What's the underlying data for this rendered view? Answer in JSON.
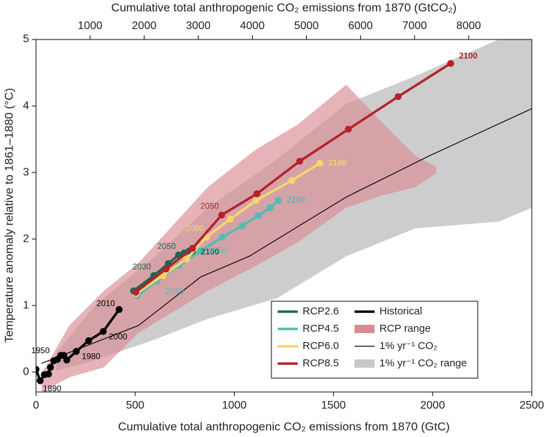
{
  "chart_data": {
    "type": "line",
    "x_label": "Cumulative total anthropogenic CO₂ emissions from 1870 (GtC)",
    "x2_label": "Cumulative total anthropogenic CO₂ emissions from 1870 (GtCO₂)",
    "y_label": "Temperature anomaly relative to 1861–1880 (°C)",
    "xlim": [
      0,
      2500
    ],
    "xticks": [
      0,
      500,
      1000,
      1500,
      2000,
      2500
    ],
    "ylim": [
      -0.3,
      5
    ],
    "yticks": [
      0,
      1,
      2,
      3,
      4,
      5
    ],
    "x2lim": [
      0,
      9167
    ],
    "x2ticks": [
      1000,
      2000,
      3000,
      4000,
      5000,
      6000,
      7000,
      8000
    ],
    "legend": "lower right",
    "bands": [
      {
        "name": "RCP range",
        "color": "#d98a92",
        "x": [
          28,
          168,
          342,
          517,
          866,
          1111,
          1320,
          1564,
          1739,
          1913,
          2018
        ],
        "upper": [
          -0.03,
          0.7,
          1.22,
          1.64,
          2.78,
          3.35,
          3.72,
          4.32,
          3.77,
          3.25,
          3.09
        ],
        "lower": [
          -0.3,
          -0.08,
          0.07,
          0.59,
          1.22,
          1.6,
          1.95,
          2.47,
          2.65,
          2.78,
          2.99
        ]
      },
      {
        "name": "1% yr⁻¹ CO₂ range",
        "color": "#c8c8c8",
        "x": [
          100,
          300,
          600,
          866,
          1215,
          1564,
          1913,
          2332,
          2500
        ],
        "upper": [
          0.28,
          1.01,
          1.74,
          2.47,
          3.2,
          4.03,
          4.45,
          5.0,
          5.3
        ],
        "lower": [
          0.02,
          0.18,
          0.49,
          0.8,
          1.11,
          1.74,
          2.16,
          2.26,
          2.47
        ]
      }
    ],
    "series": [
      {
        "name": "RCP2.6",
        "color": "#1b6554",
        "markers": true,
        "x": [
          492,
          594,
          667,
          719,
          747,
          772,
          789
        ],
        "values": [
          1.22,
          1.45,
          1.63,
          1.76,
          1.79,
          1.82,
          1.8
        ],
        "point_labels": [
          null,
          "2030",
          null,
          "2050",
          null,
          null,
          "2100"
        ]
      },
      {
        "name": "RCP4.5",
        "color": "#52bcb3",
        "markers": true,
        "x": [
          510,
          610,
          720,
          830,
          940,
          1040,
          1120,
          1180,
          1222
        ],
        "values": [
          1.15,
          1.37,
          1.6,
          1.82,
          2.03,
          2.2,
          2.35,
          2.47,
          2.58
        ],
        "point_labels": [
          null,
          "2030",
          null,
          "2050",
          null,
          null,
          null,
          null,
          "2100"
        ]
      },
      {
        "name": "RCP6.0",
        "color": "#f8d46c",
        "markers": true,
        "x": [
          505,
          640,
          760,
          860,
          980,
          1110,
          1290,
          1432
        ],
        "values": [
          1.18,
          1.45,
          1.7,
          2.03,
          2.3,
          2.58,
          2.88,
          3.14
        ],
        "point_labels": [
          null,
          null,
          null,
          "2050",
          null,
          null,
          null,
          "2100"
        ]
      },
      {
        "name": "RCP8.5",
        "color": "#b3222d",
        "markers": true,
        "x": [
          503,
          656,
          789,
          936,
          1114,
          1330,
          1575,
          1826,
          2091
        ],
        "values": [
          1.2,
          1.55,
          1.86,
          2.36,
          2.68,
          3.17,
          3.65,
          4.14,
          4.64
        ],
        "point_labels": [
          null,
          null,
          null,
          "2050",
          null,
          null,
          null,
          null,
          "2100"
        ]
      },
      {
        "name": "Historical",
        "color": "#000000",
        "markers": true,
        "x": [
          0,
          21,
          42,
          63,
          73,
          90,
          108,
          125,
          140,
          155,
          203,
          265,
          339,
          419
        ],
        "values": [
          0.04,
          -0.13,
          -0.04,
          -0.03,
          0.07,
          0.17,
          0.19,
          0.25,
          0.25,
          0.18,
          0.31,
          0.47,
          0.61,
          0.94
        ],
        "point_labels": [
          null,
          "1890",
          null,
          null,
          null,
          "1950",
          null,
          null,
          null,
          null,
          "1980",
          null,
          "2000",
          "2010"
        ]
      },
      {
        "name": "1% yr⁻¹ CO₂",
        "color": "#000000",
        "markers": false,
        "x": [
          28,
          517,
          831,
          1075,
          1564,
          1983,
          2500
        ],
        "values": [
          0.13,
          0.7,
          1.43,
          1.74,
          2.63,
          3.25,
          3.96
        ]
      }
    ]
  }
}
